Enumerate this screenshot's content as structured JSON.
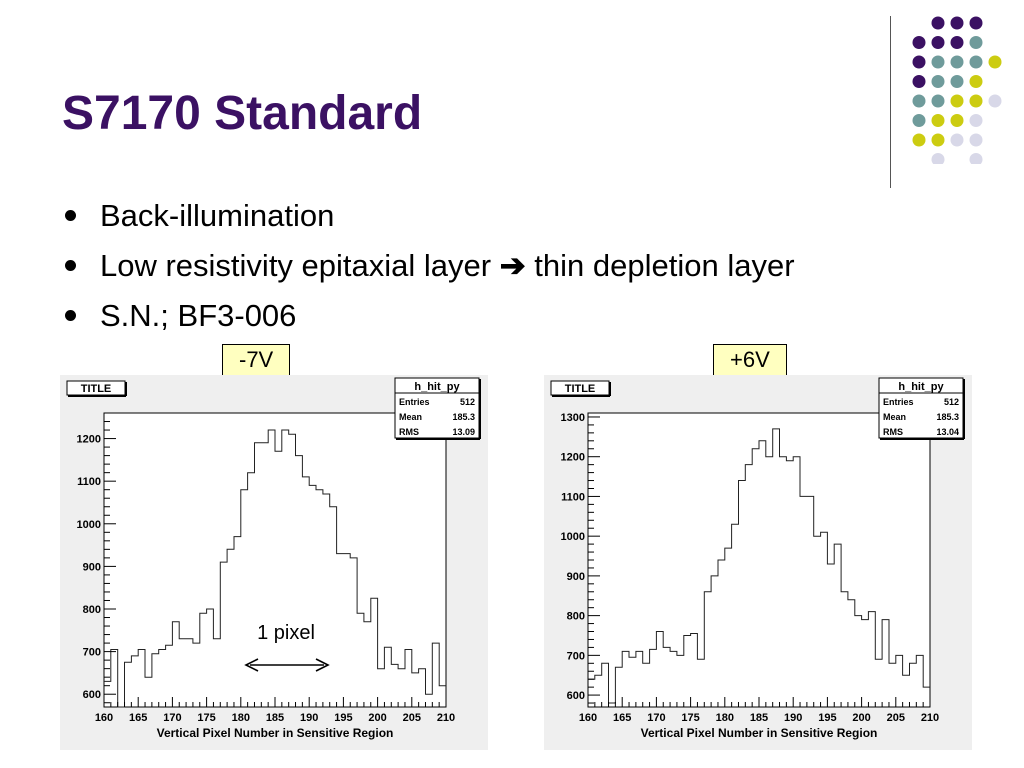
{
  "slide": {
    "title": "S7170 Standard",
    "bullets": [
      {
        "text_before": "Back-illumination",
        "arrow": "",
        "text_after": ""
      },
      {
        "text_before": "Low resistivity epitaxial layer ",
        "arrow": "➔",
        "text_after": " thin depletion layer"
      },
      {
        "text_before": "S.N.; BF3-006",
        "arrow": "",
        "text_after": ""
      }
    ],
    "annotation": "1 pixel"
  },
  "decor": {
    "dot_colors": {
      "purple": "#3b1163",
      "teal": "#6f9b9b",
      "yellow": "#cccc11",
      "lavender": "#d8d8e8"
    }
  },
  "chart_data": [
    {
      "type": "line",
      "label_box": "-7V",
      "frame_label": "TITLE",
      "stats": {
        "name": "h_hit_py",
        "rows": [
          [
            "Entries",
            "512"
          ],
          [
            "Mean",
            "185.3"
          ],
          [
            "RMS",
            "13.09"
          ]
        ]
      },
      "xlabel": "Vertical Pixel Number in Sensitive Region",
      "ylabel": "",
      "xlim": [
        160,
        210
      ],
      "ylim": [
        570,
        1260
      ],
      "x_ticks": [
        160,
        165,
        170,
        175,
        180,
        185,
        190,
        195,
        200,
        205,
        210
      ],
      "y_ticks": [
        600,
        700,
        800,
        900,
        1000,
        1100,
        1200
      ],
      "x": [
        160,
        161,
        162,
        163,
        164,
        165,
        166,
        167,
        168,
        169,
        170,
        171,
        172,
        173,
        174,
        175,
        176,
        177,
        178,
        179,
        180,
        181,
        182,
        183,
        184,
        185,
        186,
        187,
        188,
        189,
        190,
        191,
        192,
        193,
        194,
        195,
        196,
        197,
        198,
        199,
        200,
        201,
        202,
        203,
        204,
        205,
        206,
        207,
        208,
        209
      ],
      "values": [
        630,
        705,
        570,
        675,
        690,
        705,
        640,
        695,
        705,
        715,
        770,
        730,
        730,
        720,
        790,
        800,
        730,
        910,
        940,
        970,
        1080,
        1120,
        1190,
        1190,
        1220,
        1170,
        1220,
        1210,
        1160,
        1110,
        1090,
        1080,
        1070,
        1040,
        930,
        930,
        920,
        790,
        770,
        825,
        660,
        710,
        670,
        660,
        705,
        650,
        660,
        600,
        720,
        620
      ]
    },
    {
      "type": "line",
      "label_box": "+6V",
      "frame_label": "TITLE",
      "stats": {
        "name": "h_hit_py",
        "rows": [
          [
            "Entries",
            "512"
          ],
          [
            "Mean",
            "185.3"
          ],
          [
            "RMS",
            "13.04"
          ]
        ]
      },
      "xlabel": "Vertical Pixel Number in Sensitive Region",
      "ylabel": "",
      "xlim": [
        160,
        210
      ],
      "ylim": [
        570,
        1310
      ],
      "x_ticks": [
        160,
        165,
        170,
        175,
        180,
        185,
        190,
        195,
        200,
        205,
        210
      ],
      "y_ticks": [
        600,
        700,
        800,
        900,
        1000,
        1100,
        1200,
        1300
      ],
      "x": [
        160,
        161,
        162,
        163,
        164,
        165,
        166,
        167,
        168,
        169,
        170,
        171,
        172,
        173,
        174,
        175,
        176,
        177,
        178,
        179,
        180,
        181,
        182,
        183,
        184,
        185,
        186,
        187,
        188,
        189,
        190,
        191,
        192,
        193,
        194,
        195,
        196,
        197,
        198,
        199,
        200,
        201,
        202,
        203,
        204,
        205,
        206,
        207,
        208,
        209
      ],
      "values": [
        640,
        650,
        680,
        580,
        670,
        710,
        695,
        710,
        680,
        715,
        760,
        720,
        710,
        700,
        750,
        755,
        690,
        860,
        900,
        940,
        970,
        1030,
        1140,
        1180,
        1220,
        1240,
        1200,
        1270,
        1200,
        1190,
        1200,
        1100,
        1100,
        1000,
        1010,
        930,
        980,
        860,
        840,
        800,
        790,
        810,
        690,
        790,
        680,
        700,
        650,
        680,
        700,
        620
      ]
    }
  ]
}
